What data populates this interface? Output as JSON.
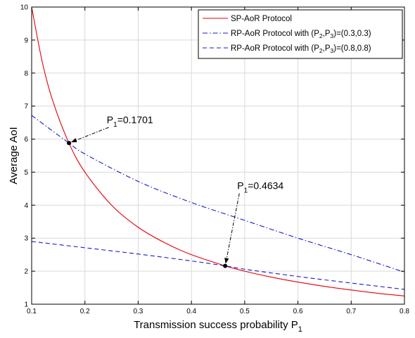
{
  "chart_data": {
    "type": "line",
    "xlabel": "Transmission success probability",
    "xlabel_sub": "1",
    "ylabel": "Average AoI",
    "xlim": [
      0.1,
      0.8
    ],
    "ylim": [
      1,
      10
    ],
    "xticks": [
      0.1,
      0.2,
      0.3,
      0.4,
      0.5,
      0.6,
      0.7,
      0.8
    ],
    "yticks": [
      1,
      2,
      3,
      4,
      5,
      6,
      7,
      8,
      9,
      10
    ],
    "grid": true,
    "legend_position": "top-right",
    "series": [
      {
        "legend_parts": [
          "SP-AoR Protocol"
        ],
        "color": "#e3000b",
        "style": "solid",
        "x": [
          0.1,
          0.12,
          0.14,
          0.17,
          0.2,
          0.25,
          0.3,
          0.35,
          0.4,
          0.4634,
          0.5,
          0.55,
          0.6,
          0.65,
          0.7,
          0.75,
          0.8
        ],
        "y": [
          10.0,
          8.33,
          7.14,
          5.88,
          5.0,
          4.0,
          3.33,
          2.86,
          2.5,
          2.16,
          2.0,
          1.82,
          1.67,
          1.54,
          1.43,
          1.33,
          1.25
        ]
      },
      {
        "legend_parts": [
          "RP-AoR Protocol with (P",
          "2",
          ",P",
          "3",
          ")=(0.3,0.3)"
        ],
        "color": "#1a1acc",
        "style": "dashdot",
        "x": [
          0.1,
          0.17,
          0.2,
          0.3,
          0.4,
          0.5,
          0.6,
          0.7,
          0.8
        ],
        "y": [
          6.72,
          5.88,
          5.55,
          4.72,
          4.08,
          3.54,
          3.0,
          2.5,
          1.97
        ]
      },
      {
        "legend_parts": [
          "RP-AoR Protocol with (P",
          "2",
          ",P",
          "3",
          ")=(0.8,0.8)"
        ],
        "color": "#1a1acc",
        "style": "dashed",
        "x": [
          0.1,
          0.2,
          0.3,
          0.4,
          0.4634,
          0.5,
          0.6,
          0.7,
          0.8
        ],
        "y": [
          2.9,
          2.71,
          2.52,
          2.31,
          2.16,
          2.06,
          1.84,
          1.64,
          1.45
        ]
      }
    ],
    "annotations": [
      {
        "text_main": "P",
        "text_sub": "1",
        "text_rest": "=0.1701",
        "point": [
          0.1701,
          5.88
        ],
        "label_at": [
          0.245,
          6.4
        ]
      },
      {
        "text_main": "P",
        "text_sub": "1",
        "text_rest": "=0.4634",
        "point": [
          0.4634,
          2.16
        ],
        "label_at": [
          0.49,
          4.4
        ]
      }
    ]
  }
}
